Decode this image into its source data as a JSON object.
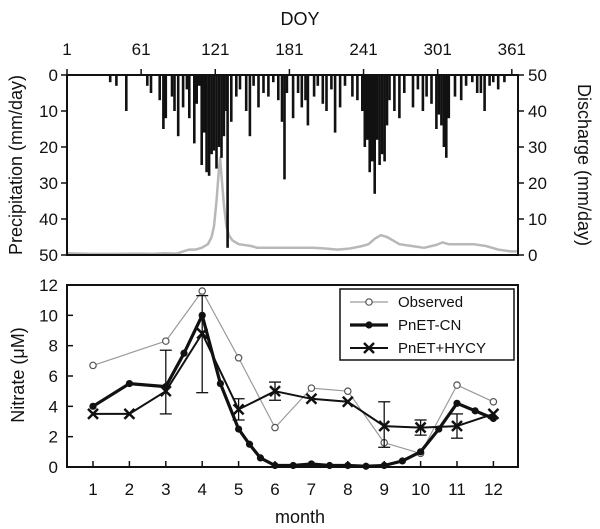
{
  "colors": {
    "ink": "#111111",
    "discharge": "#b8b8b8",
    "observed_line": "#9a9a9a"
  },
  "chart_data": [
    {
      "type": "bar",
      "top_axis": {
        "label": "DOY",
        "ticks": [
          1,
          61,
          121,
          181,
          241,
          301,
          361
        ]
      },
      "ylabel_left": "Precipitation (mm/day)",
      "yticks_left": [
        0,
        10,
        20,
        30,
        40,
        50
      ],
      "ylim_left": [
        50,
        0
      ],
      "ylabel_right": "Discharge (mm/day)",
      "yticks_right": [
        50,
        40,
        30,
        20,
        10,
        0
      ],
      "ylim_right": [
        0,
        50
      ],
      "series": [
        {
          "type": "bar",
          "axis": "left-inverted",
          "points": [
            [
              36,
              2
            ],
            [
              41,
              3
            ],
            [
              49,
              10
            ],
            [
              66,
              3
            ],
            [
              69,
              5
            ],
            [
              76,
              7
            ],
            [
              79,
              15
            ],
            [
              81,
              12
            ],
            [
              86,
              6
            ],
            [
              88,
              10
            ],
            [
              91,
              17
            ],
            [
              95,
              9
            ],
            [
              98,
              4
            ],
            [
              100,
              12
            ],
            [
              104,
              19
            ],
            [
              106,
              8
            ],
            [
              108,
              3
            ],
            [
              110,
              25
            ],
            [
              112,
              16
            ],
            [
              114,
              27
            ],
            [
              116,
              28
            ],
            [
              118,
              22
            ],
            [
              120,
              21
            ],
            [
              122,
              26
            ],
            [
              124,
              20
            ],
            [
              126,
              23
            ],
            [
              128,
              17
            ],
            [
              130,
              10
            ],
            [
              131,
              48
            ],
            [
              134,
              13
            ],
            [
              138,
              6
            ],
            [
              141,
              4
            ],
            [
              146,
              10
            ],
            [
              149,
              17
            ],
            [
              152,
              3
            ],
            [
              156,
              9
            ],
            [
              160,
              5
            ],
            [
              164,
              6
            ],
            [
              168,
              2
            ],
            [
              172,
              7
            ],
            [
              175,
              13
            ],
            [
              177,
              29
            ],
            [
              179,
              5
            ],
            [
              184,
              12
            ],
            [
              188,
              5
            ],
            [
              191,
              9
            ],
            [
              194,
              7
            ],
            [
              196,
              14
            ],
            [
              201,
              6
            ],
            [
              204,
              3
            ],
            [
              208,
              8
            ],
            [
              211,
              10
            ],
            [
              215,
              4
            ],
            [
              218,
              16
            ],
            [
              222,
              9
            ],
            [
              226,
              3
            ],
            [
              232,
              6
            ],
            [
              236,
              7
            ],
            [
              240,
              10
            ],
            [
              242,
              20
            ],
            [
              244,
              18
            ],
            [
              246,
              27
            ],
            [
              248,
              24
            ],
            [
              250,
              33
            ],
            [
              252,
              18
            ],
            [
              254,
              25
            ],
            [
              256,
              22
            ],
            [
              258,
              24
            ],
            [
              260,
              14
            ],
            [
              262,
              7
            ],
            [
              266,
              10
            ],
            [
              270,
              12
            ],
            [
              274,
              5
            ],
            [
              281,
              9
            ],
            [
              285,
              4
            ],
            [
              289,
              10
            ],
            [
              292,
              6
            ],
            [
              296,
              8
            ],
            [
              300,
              15
            ],
            [
              302,
              11
            ],
            [
              304,
              14
            ],
            [
              306,
              20
            ],
            [
              308,
              23
            ],
            [
              310,
              12
            ],
            [
              315,
              6
            ],
            [
              320,
              7
            ],
            [
              324,
              3
            ],
            [
              329,
              2
            ],
            [
              333,
              5
            ],
            [
              336,
              5
            ],
            [
              339,
              10
            ],
            [
              343,
              3
            ],
            [
              346,
              2
            ],
            [
              350,
              4
            ],
            [
              355,
              2
            ]
          ]
        },
        {
          "type": "area",
          "axis": "right",
          "points": [
            [
              1,
              0.5
            ],
            [
              20,
              0.3
            ],
            [
              40,
              0.3
            ],
            [
              60,
              0.4
            ],
            [
              70,
              0.3
            ],
            [
              80,
              0.5
            ],
            [
              90,
              0.4
            ],
            [
              95,
              1.0
            ],
            [
              100,
              1.5
            ],
            [
              105,
              1.5
            ],
            [
              110,
              2.0
            ],
            [
              115,
              3.0
            ],
            [
              118,
              5.0
            ],
            [
              120,
              8.0
            ],
            [
              122,
              15.0
            ],
            [
              124,
              24.0
            ],
            [
              125,
              27.0
            ],
            [
              126,
              22.0
            ],
            [
              128,
              14.0
            ],
            [
              130,
              8.0
            ],
            [
              132,
              5.5
            ],
            [
              135,
              4.0
            ],
            [
              140,
              3.0
            ],
            [
              150,
              2.5
            ],
            [
              155,
              2.0
            ],
            [
              165,
              2.0
            ],
            [
              175,
              2.0
            ],
            [
              180,
              2.0
            ],
            [
              190,
              2.0
            ],
            [
              200,
              2.0
            ],
            [
              210,
              1.8
            ],
            [
              220,
              1.5
            ],
            [
              230,
              1.8
            ],
            [
              240,
              2.5
            ],
            [
              245,
              3.0
            ],
            [
              250,
              4.5
            ],
            [
              255,
              5.5
            ],
            [
              260,
              5.0
            ],
            [
              265,
              4.0
            ],
            [
              270,
              3.0
            ],
            [
              280,
              2.5
            ],
            [
              290,
              2.0
            ],
            [
              300,
              2.8
            ],
            [
              305,
              3.5
            ],
            [
              310,
              3.0
            ],
            [
              320,
              3.0
            ],
            [
              330,
              3.0
            ],
            [
              340,
              2.5
            ],
            [
              350,
              1.5
            ],
            [
              360,
              1.0
            ],
            [
              365,
              1.0
            ]
          ]
        }
      ]
    },
    {
      "type": "line",
      "xlabel": "month",
      "ylabel": "Nitrate (μM)",
      "xticks": [
        1,
        2,
        3,
        4,
        5,
        6,
        7,
        8,
        9,
        10,
        11,
        12
      ],
      "yticks": [
        0,
        2,
        4,
        6,
        8,
        10,
        12
      ],
      "ylim": [
        0,
        12
      ],
      "legend_position": "top-right",
      "series": [
        {
          "name": "Observed",
          "marker": "open-circle",
          "x": [
            1,
            3,
            4,
            5,
            6,
            7,
            8,
            9,
            10,
            11,
            12
          ],
          "values": [
            6.7,
            8.3,
            11.6,
            7.2,
            2.6,
            5.2,
            5.0,
            1.6,
            0.9,
            5.4,
            4.3
          ]
        },
        {
          "name": "PnET-CN",
          "marker": "filled-circle",
          "x": [
            1,
            2,
            3,
            3.5,
            4,
            4.5,
            5,
            5.3,
            5.6,
            6,
            6.5,
            7,
            7.5,
            8,
            8.5,
            9,
            9.5,
            10,
            10.5,
            11,
            11.5,
            12
          ],
          "values": [
            4.0,
            5.5,
            5.3,
            7.5,
            10.0,
            5.5,
            2.5,
            1.5,
            0.6,
            0.1,
            0.1,
            0.2,
            0.1,
            0.1,
            0.05,
            0.1,
            0.4,
            1.0,
            2.5,
            4.2,
            3.7,
            3.2
          ]
        },
        {
          "name": "PnET+HYCY",
          "marker": "x",
          "x": [
            1,
            2,
            3,
            4,
            5,
            6,
            7,
            8,
            9,
            10,
            11,
            12
          ],
          "values": [
            3.5,
            3.5,
            5.0,
            8.8,
            3.8,
            5.0,
            4.5,
            4.3,
            2.7,
            2.6,
            2.7,
            3.5
          ],
          "error_low": [
            null,
            null,
            3.5,
            4.9,
            3.1,
            4.4,
            null,
            null,
            1.3,
            2.1,
            1.9,
            null
          ],
          "error_high": [
            null,
            null,
            7.7,
            11.3,
            4.5,
            5.6,
            null,
            null,
            4.3,
            3.1,
            3.5,
            null
          ]
        }
      ]
    }
  ]
}
